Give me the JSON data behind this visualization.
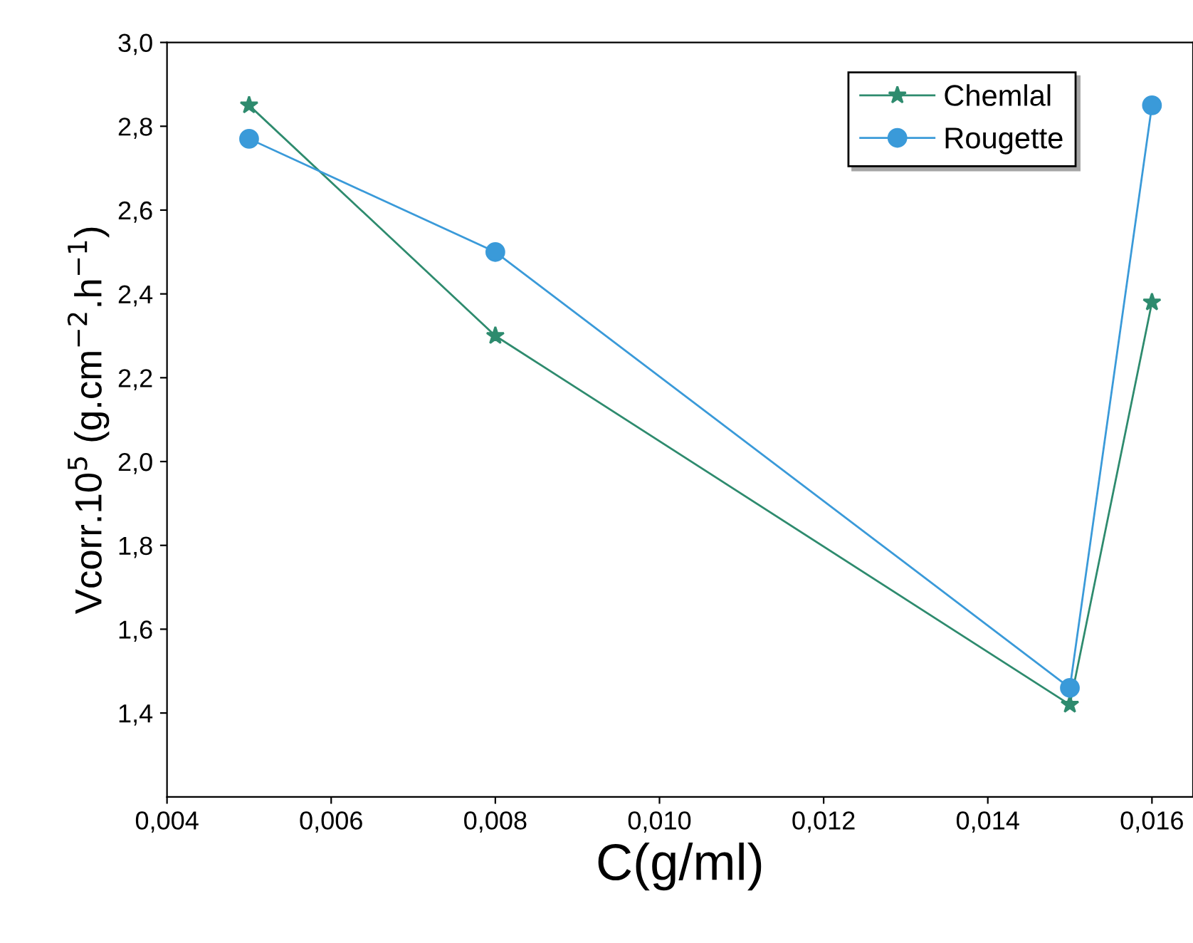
{
  "chart_data": {
    "type": "line",
    "xlabel": "C(g/ml)",
    "ylabel": "Vcorr.10$^{5}$ (g.cm$^{−2}$.h$^{−1}$)",
    "x": [
      0.005,
      0.008,
      0.015,
      0.016
    ],
    "series": [
      {
        "name": "Chemlal",
        "color": "#2e8b6e",
        "marker": "star",
        "values": [
          2.85,
          2.3,
          1.42,
          2.38
        ]
      },
      {
        "name": "Rougette",
        "color": "#3a9ad9",
        "marker": "circle",
        "values": [
          2.77,
          2.5,
          1.46,
          2.85
        ]
      }
    ],
    "xlim": [
      0.004,
      0.0165
    ],
    "xticks": [
      {
        "value": 0.004,
        "label": "0,004"
      },
      {
        "value": 0.006,
        "label": "0,006"
      },
      {
        "value": 0.008,
        "label": "0,008"
      },
      {
        "value": 0.01,
        "label": "0,010"
      },
      {
        "value": 0.012,
        "label": "0,012"
      },
      {
        "value": 0.014,
        "label": "0,014"
      },
      {
        "value": 0.016,
        "label": "0,016"
      }
    ],
    "ylim": [
      1.2,
      3.0
    ],
    "yticks": [
      {
        "value": 1.4,
        "label": "1,4"
      },
      {
        "value": 1.6,
        "label": "1,6"
      },
      {
        "value": 1.8,
        "label": "1,8"
      },
      {
        "value": 2.0,
        "label": "2,0"
      },
      {
        "value": 2.2,
        "label": "2,2"
      },
      {
        "value": 2.4,
        "label": "2,4"
      },
      {
        "value": 2.6,
        "label": "2,6"
      },
      {
        "value": 2.8,
        "label": "2,8"
      },
      {
        "value": 3.0,
        "label": "3,0"
      }
    ],
    "grid": false,
    "legend": "top right",
    "line_style": "solid"
  }
}
